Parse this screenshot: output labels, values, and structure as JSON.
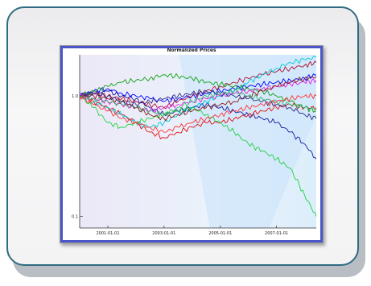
{
  "chart_data": {
    "type": "line",
    "title": "Normalized Prices",
    "xlabel": "",
    "ylabel": "",
    "y_scale": "log",
    "ylim": [
      0.08,
      2.2
    ],
    "y_ticks": [
      {
        "value": 0.1,
        "label": "0.1"
      },
      {
        "value": 1,
        "label": "1.0"
      }
    ],
    "x_ticks": [
      "2001-01-01",
      "2003-01-01",
      "2005-01-01",
      "2007-01-01"
    ],
    "x_range": [
      "2000-01-01",
      "2008-06-01"
    ],
    "grid": false,
    "x": [
      "2000-01-01",
      "2000-07-01",
      "2001-01-01",
      "2001-07-01",
      "2002-01-01",
      "2002-07-01",
      "2003-01-01",
      "2003-07-01",
      "2004-01-01",
      "2004-07-01",
      "2005-01-01",
      "2005-07-01",
      "2006-01-01",
      "2006-07-01",
      "2007-01-01",
      "2007-07-01",
      "2008-01-01",
      "2008-06-01"
    ],
    "series": [
      {
        "color": "#1a1a9e",
        "values": [
          1.0,
          1.05,
          1.1,
          1.0,
          0.95,
          0.8,
          0.7,
          0.75,
          0.8,
          0.85,
          0.8,
          0.75,
          0.7,
          0.65,
          0.6,
          0.5,
          0.4,
          0.3
        ]
      },
      {
        "color": "#0000ff",
        "values": [
          1.0,
          1.1,
          1.15,
          1.05,
          1.0,
          0.95,
          0.9,
          0.95,
          1.0,
          1.05,
          1.1,
          1.15,
          1.2,
          1.25,
          1.3,
          1.35,
          1.4,
          1.5
        ]
      },
      {
        "color": "#e01010",
        "values": [
          1.0,
          0.9,
          0.8,
          0.7,
          0.6,
          0.5,
          0.45,
          0.5,
          0.55,
          0.6,
          0.6,
          0.65,
          0.7,
          0.75,
          0.8,
          0.85,
          0.8,
          0.8
        ]
      },
      {
        "color": "#b01030",
        "values": [
          1.0,
          1.05,
          1.0,
          0.95,
          0.9,
          0.85,
          0.8,
          0.9,
          1.0,
          1.1,
          1.2,
          1.3,
          1.4,
          1.5,
          1.6,
          1.7,
          1.8,
          1.9
        ]
      },
      {
        "color": "#00c8d8",
        "values": [
          1.0,
          0.9,
          0.8,
          0.7,
          0.6,
          0.55,
          0.6,
          0.7,
          0.8,
          0.9,
          1.0,
          1.1,
          1.3,
          1.5,
          1.7,
          1.9,
          2.0,
          2.1
        ]
      },
      {
        "color": "#10a010",
        "values": [
          1.0,
          1.1,
          1.2,
          1.3,
          1.35,
          1.4,
          1.5,
          1.45,
          1.4,
          1.3,
          1.25,
          1.2,
          1.15,
          1.1,
          1.0,
          0.9,
          0.8,
          0.75
        ]
      },
      {
        "color": "#20d040",
        "values": [
          1.0,
          0.8,
          0.6,
          0.55,
          0.6,
          0.65,
          0.7,
          0.75,
          0.8,
          0.7,
          0.6,
          0.5,
          0.4,
          0.35,
          0.3,
          0.25,
          0.15,
          0.1
        ]
      },
      {
        "color": "#e020e0",
        "values": [
          1.0,
          0.95,
          0.9,
          0.85,
          0.8,
          0.75,
          0.8,
          0.85,
          0.9,
          0.95,
          1.0,
          1.05,
          1.1,
          1.15,
          1.2,
          1.25,
          1.3,
          1.35
        ]
      },
      {
        "color": "#8b1a1a",
        "values": [
          1.0,
          1.0,
          0.95,
          0.9,
          0.8,
          0.7,
          0.65,
          0.7,
          0.75,
          0.8,
          0.85,
          0.9,
          1.0,
          1.1,
          1.2,
          1.3,
          1.4,
          1.45
        ]
      },
      {
        "color": "#2d2d8a",
        "values": [
          1.0,
          1.05,
          1.0,
          0.9,
          0.85,
          0.9,
          0.95,
          1.0,
          1.05,
          1.1,
          1.05,
          1.0,
          0.95,
          0.9,
          0.85,
          0.8,
          0.7,
          0.65
        ]
      },
      {
        "color": "#3cb371",
        "values": [
          1.0,
          0.95,
          0.9,
          0.85,
          0.8,
          0.75,
          0.7,
          0.8,
          0.9,
          1.0,
          1.05,
          1.1,
          1.0,
          0.95,
          0.9,
          0.85,
          0.8,
          0.78
        ]
      },
      {
        "color": "#ff3333",
        "values": [
          1.0,
          0.85,
          0.75,
          0.65,
          0.6,
          0.55,
          0.5,
          0.55,
          0.6,
          0.65,
          0.7,
          0.75,
          0.8,
          0.85,
          0.9,
          0.95,
          1.0,
          1.0
        ]
      }
    ]
  }
}
